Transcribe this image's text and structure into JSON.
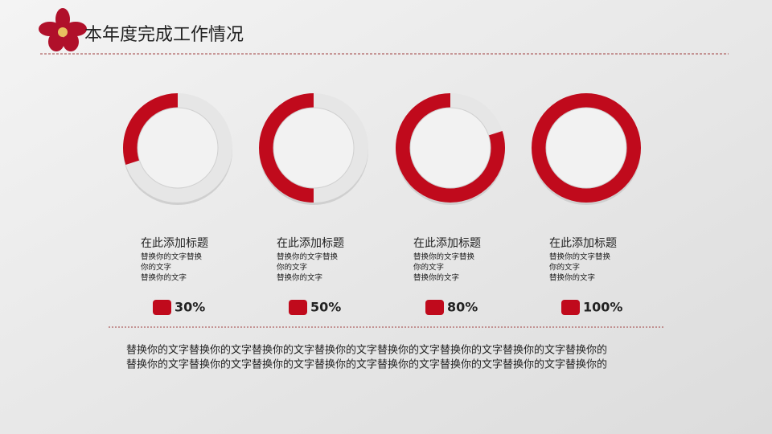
{
  "header": {
    "title": "本年度完成工作情况"
  },
  "items": [
    {
      "heading": "在此添加标题",
      "lines": [
        "替换你的文字替换",
        "你的文字",
        "替换你的文字"
      ],
      "value": 30,
      "value_label": "30%"
    },
    {
      "heading": "在此添加标题",
      "lines": [
        "替换你的文字替换",
        "你的文字",
        "替换你的文字"
      ],
      "value": 50,
      "value_label": "50%"
    },
    {
      "heading": "在此添加标题",
      "lines": [
        "替换你的文字替换",
        "你的文字",
        "替换你的文字"
      ],
      "value": 80,
      "value_label": "80%"
    },
    {
      "heading": "在此添加标题",
      "lines": [
        "替换你的文字替换",
        "你的文字",
        "替换你的文字"
      ],
      "value": 100,
      "value_label": "100%"
    }
  ],
  "footer": {
    "lines": [
      "替换你的文字替换你的文字替换你的文字替换你的文字替换你的文字替换你的文字替换你的文字替换你的",
      "替换你的文字替换你的文字替换你的文字替换你的文字替换你的文字替换你的文字替换你的文字替换你的"
    ]
  }
}
